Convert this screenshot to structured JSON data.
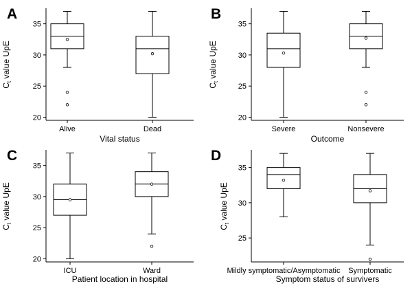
{
  "chart_data": [
    {
      "panel": "A",
      "type": "box",
      "xlabel": "Vital status",
      "ylabel_main": "C",
      "ylabel_sub": "t",
      "ylabel_rest": " value UpE",
      "ylim": [
        19.5,
        37.5
      ],
      "yticks": [
        20,
        25,
        30,
        35
      ],
      "categories": [
        "Alive",
        "Dead"
      ],
      "boxes": [
        {
          "min": 28,
          "q1": 31,
          "median": 33,
          "q3": 35,
          "max": 37,
          "mean": 32.5,
          "outliers": [
            24,
            22
          ]
        },
        {
          "min": 20,
          "q1": 27,
          "median": 31,
          "q3": 33,
          "max": 37,
          "mean": 30.2,
          "outliers": []
        }
      ]
    },
    {
      "panel": "B",
      "type": "box",
      "xlabel": "Outcome",
      "ylabel_main": "C",
      "ylabel_sub": "t",
      "ylabel_rest": " value UpE",
      "ylim": [
        19.5,
        37.5
      ],
      "yticks": [
        20,
        25,
        30,
        35
      ],
      "categories": [
        "Severe",
        "Nonsevere"
      ],
      "boxes": [
        {
          "min": 20,
          "q1": 28,
          "median": 31,
          "q3": 33.5,
          "max": 37,
          "mean": 30.3,
          "outliers": []
        },
        {
          "min": 28,
          "q1": 31,
          "median": 33,
          "q3": 35,
          "max": 37,
          "mean": 32.7,
          "outliers": [
            24,
            22
          ]
        }
      ]
    },
    {
      "panel": "C",
      "type": "box",
      "xlabel": "Patient location in hospital",
      "ylabel_main": "C",
      "ylabel_sub": "t",
      "ylabel_rest": " value UpE",
      "ylim": [
        19.5,
        37.5
      ],
      "yticks": [
        20,
        25,
        30,
        35
      ],
      "categories": [
        "ICU",
        "Ward"
      ],
      "boxes": [
        {
          "min": 20,
          "q1": 27,
          "median": 29.5,
          "q3": 32,
          "max": 37,
          "mean": 29.5,
          "outliers": []
        },
        {
          "min": 24,
          "q1": 30,
          "median": 32,
          "q3": 34,
          "max": 37,
          "mean": 32,
          "outliers": [
            22
          ]
        }
      ]
    },
    {
      "panel": "D",
      "type": "box",
      "xlabel": "Symptom status of survivers",
      "ylabel_main": "C",
      "ylabel_sub": "t",
      "ylabel_rest": " value UpE",
      "ylim": [
        21.6,
        37.5
      ],
      "yticks": [
        25,
        30,
        35
      ],
      "categories": [
        "Mildly symptomatic/Asymptomatic",
        "Symptomatic"
      ],
      "boxes": [
        {
          "min": 28,
          "q1": 32,
          "median": 34,
          "q3": 35,
          "max": 37,
          "mean": 33.2,
          "outliers": []
        },
        {
          "min": 24,
          "q1": 30,
          "median": 32,
          "q3": 34,
          "max": 37,
          "mean": 31.7,
          "outliers": [
            22
          ]
        }
      ]
    }
  ]
}
